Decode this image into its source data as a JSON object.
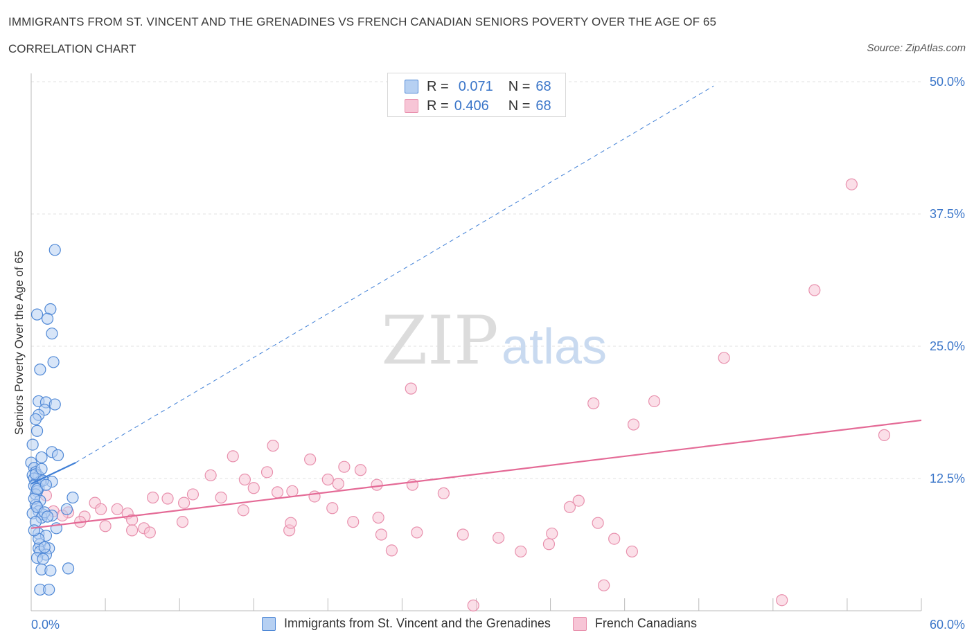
{
  "header": {
    "title": "IMMIGRANTS FROM ST. VINCENT AND THE GRENADINES VS FRENCH CANADIAN SENIORS POVERTY OVER THE AGE OF 65",
    "subtitle": "CORRELATION CHART",
    "source": "Source: ZipAtlas.com"
  },
  "watermark": {
    "zip": "ZIP",
    "atlas": "atlas"
  },
  "legend": {
    "r_label": "R =",
    "n_label": "N =",
    "series": [
      {
        "r": "0.071",
        "n": "68"
      },
      {
        "r": "0.406",
        "n": "68"
      }
    ]
  },
  "colors": {
    "blue_fill": "#b6d0f2",
    "blue_stroke": "#4f88d6",
    "blue_line": "#3f7fd6",
    "pink_fill": "#f7c5d6",
    "pink_stroke": "#e890ad",
    "pink_line": "#e46a96",
    "axis_text": "#3b76c9"
  },
  "chart_data": {
    "type": "scatter",
    "title": "IMMIGRANTS FROM ST. VINCENT AND THE GRENADINES VS FRENCH CANADIAN SENIORS POVERTY OVER THE AGE OF 65",
    "ylabel": "Seniors Poverty Over the Age of 65",
    "xlim": [
      0,
      60
    ],
    "ylim": [
      0,
      50
    ],
    "x_tick_labels": [
      "0.0%",
      "60.0%"
    ],
    "y_ticks": [
      12.5,
      25.0,
      37.5,
      50.0
    ],
    "y_tick_labels": [
      "12.5%",
      "25.0%",
      "37.5%",
      "50.0%"
    ],
    "grid": true,
    "series": [
      {
        "name": "Immigrants from St. Vincent and the Grenadines",
        "color": "#4f88d6",
        "points": [
          [
            1.6,
            34.1
          ],
          [
            1.3,
            28.5
          ],
          [
            0.4,
            28.0
          ],
          [
            1.1,
            27.6
          ],
          [
            1.4,
            26.2
          ],
          [
            1.5,
            23.5
          ],
          [
            0.6,
            22.8
          ],
          [
            0.5,
            19.8
          ],
          [
            1.0,
            19.7
          ],
          [
            1.6,
            19.5
          ],
          [
            0.9,
            19.0
          ],
          [
            0.5,
            18.5
          ],
          [
            0.3,
            18.1
          ],
          [
            0.4,
            17.0
          ],
          [
            0.1,
            15.7
          ],
          [
            1.4,
            15.0
          ],
          [
            1.8,
            14.7
          ],
          [
            0.7,
            14.5
          ],
          [
            0.0,
            14.0
          ],
          [
            0.2,
            13.5
          ],
          [
            0.3,
            13.1
          ],
          [
            0.1,
            12.8
          ],
          [
            0.5,
            12.7
          ],
          [
            0.2,
            12.5
          ],
          [
            0.6,
            12.2
          ],
          [
            0.3,
            12.0
          ],
          [
            1.4,
            12.2
          ],
          [
            0.2,
            11.8
          ],
          [
            0.5,
            11.6
          ],
          [
            0.4,
            11.3
          ],
          [
            0.3,
            11.0
          ],
          [
            2.8,
            10.7
          ],
          [
            0.6,
            10.4
          ],
          [
            0.3,
            10.0
          ],
          [
            2.4,
            9.6
          ],
          [
            0.5,
            9.4
          ],
          [
            0.1,
            9.2
          ],
          [
            0.8,
            9.1
          ],
          [
            1.4,
            9.0
          ],
          [
            0.7,
            8.8
          ],
          [
            0.3,
            8.4
          ],
          [
            1.7,
            7.8
          ],
          [
            0.5,
            7.3
          ],
          [
            1.0,
            7.1
          ],
          [
            0.6,
            6.3
          ],
          [
            0.5,
            5.9
          ],
          [
            1.2,
            5.9
          ],
          [
            0.6,
            5.6
          ],
          [
            1.0,
            5.3
          ],
          [
            0.4,
            5.0
          ],
          [
            0.8,
            4.9
          ],
          [
            2.5,
            4.0
          ],
          [
            0.7,
            3.9
          ],
          [
            1.3,
            3.8
          ],
          [
            0.6,
            2.0
          ],
          [
            1.2,
            2.0
          ],
          [
            0.3,
            12.9
          ],
          [
            0.8,
            12.3
          ],
          [
            0.2,
            10.6
          ],
          [
            0.4,
            9.8
          ],
          [
            0.9,
            9.3
          ],
          [
            1.1,
            8.9
          ],
          [
            0.5,
            6.8
          ],
          [
            0.9,
            6.0
          ],
          [
            0.4,
            11.5
          ],
          [
            1.0,
            11.9
          ],
          [
            0.7,
            13.4
          ],
          [
            0.2,
            7.6
          ]
        ]
      },
      {
        "name": "French Canadians",
        "color": "#e890ad",
        "points": [
          [
            55.3,
            40.3
          ],
          [
            52.8,
            30.3
          ],
          [
            46.7,
            23.9
          ],
          [
            25.6,
            21.0
          ],
          [
            37.9,
            19.6
          ],
          [
            42.0,
            19.8
          ],
          [
            40.6,
            17.6
          ],
          [
            57.5,
            16.6
          ],
          [
            16.3,
            15.6
          ],
          [
            13.6,
            14.6
          ],
          [
            18.8,
            14.3
          ],
          [
            21.1,
            13.6
          ],
          [
            22.2,
            13.3
          ],
          [
            15.9,
            13.1
          ],
          [
            12.1,
            12.8
          ],
          [
            20.0,
            12.4
          ],
          [
            14.4,
            12.4
          ],
          [
            20.7,
            12.0
          ],
          [
            25.7,
            11.9
          ],
          [
            23.3,
            11.9
          ],
          [
            15.0,
            11.6
          ],
          [
            16.6,
            11.2
          ],
          [
            17.6,
            11.3
          ],
          [
            27.8,
            11.1
          ],
          [
            10.9,
            11.0
          ],
          [
            19.1,
            10.8
          ],
          [
            12.8,
            10.7
          ],
          [
            8.2,
            10.7
          ],
          [
            9.2,
            10.6
          ],
          [
            10.3,
            10.2
          ],
          [
            4.3,
            10.2
          ],
          [
            36.9,
            10.4
          ],
          [
            36.3,
            9.8
          ],
          [
            20.3,
            9.7
          ],
          [
            4.7,
            9.6
          ],
          [
            5.8,
            9.6
          ],
          [
            14.3,
            9.5
          ],
          [
            6.5,
            9.2
          ],
          [
            6.8,
            8.6
          ],
          [
            2.5,
            9.3
          ],
          [
            1.5,
            9.4
          ],
          [
            10.2,
            8.4
          ],
          [
            38.2,
            8.3
          ],
          [
            17.4,
            7.6
          ],
          [
            21.7,
            8.4
          ],
          [
            23.4,
            8.8
          ],
          [
            35.1,
            7.3
          ],
          [
            17.5,
            8.3
          ],
          [
            6.8,
            7.6
          ],
          [
            7.6,
            7.8
          ],
          [
            3.6,
            8.9
          ],
          [
            8.0,
            7.4
          ],
          [
            26.0,
            7.4
          ],
          [
            23.6,
            7.2
          ],
          [
            29.1,
            7.2
          ],
          [
            31.5,
            6.9
          ],
          [
            34.9,
            6.3
          ],
          [
            39.3,
            6.8
          ],
          [
            24.3,
            5.7
          ],
          [
            33.0,
            5.6
          ],
          [
            40.5,
            5.6
          ],
          [
            38.6,
            2.4
          ],
          [
            50.6,
            1.0
          ],
          [
            29.8,
            0.5
          ],
          [
            1.0,
            10.9
          ],
          [
            2.1,
            9.0
          ],
          [
            3.3,
            8.4
          ],
          [
            5.0,
            8.0
          ]
        ]
      }
    ],
    "trendlines": [
      {
        "series": "Immigrants from St. Vincent and the Grenadines",
        "solid": [
          [
            0,
            12.0
          ],
          [
            3.0,
            14.0
          ]
        ],
        "dashed": [
          [
            3.0,
            14.0
          ],
          [
            46.0,
            49.6
          ]
        ]
      },
      {
        "series": "French Canadians",
        "solid": [
          [
            0,
            7.8
          ],
          [
            60,
            18.0
          ]
        ]
      }
    ]
  }
}
